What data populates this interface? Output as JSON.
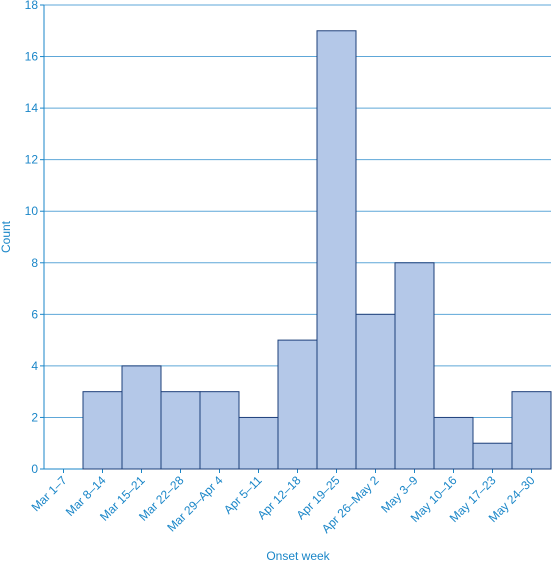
{
  "chart_data": {
    "type": "bar",
    "categories": [
      "Mar 1–7",
      "Mar 8–14",
      "Mar 15–21",
      "Mar 22–28",
      "Mar 29–Apr 4",
      "Apr 5–11",
      "Apr 12–18",
      "Apr 19–25",
      "Apr 26–May 2",
      "May 3–9",
      "May 10–16",
      "May 17–23",
      "May 24–30"
    ],
    "values": [
      0,
      3,
      4,
      3,
      3,
      2,
      5,
      17,
      6,
      8,
      2,
      1,
      3
    ],
    "color": "#b4c8e8",
    "edge_color": "#1d3f7a",
    "xlabel": "Onset week",
    "ylabel": "Count",
    "ylim": [
      0,
      18
    ],
    "yticks": [
      0,
      2,
      4,
      6,
      8,
      10,
      12,
      14,
      16,
      18
    ],
    "grid": true
  }
}
